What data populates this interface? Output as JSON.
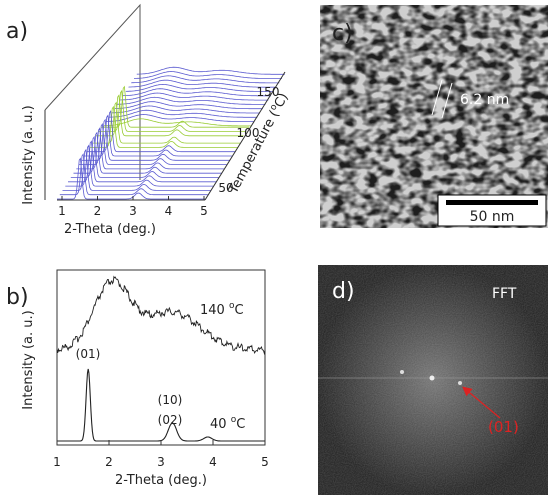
{
  "figure": {
    "a": {
      "label": "a)",
      "x_title": "2-Theta (deg.)",
      "y_title": "Intensity (a. u.)",
      "z_title": "Temperature (",
      "z_title_sup": "o",
      "z_title_end": "C)",
      "x_ticks": [
        "1",
        "2",
        "3",
        "4",
        "5"
      ],
      "z_ticks": [
        "50",
        "100",
        "150"
      ]
    },
    "b": {
      "label": "b)",
      "x_title": "2-Theta (deg.)",
      "y_title": "Intensity (a. u.)",
      "x_ticks": [
        "1",
        "2",
        "3",
        "4",
        "5"
      ],
      "hot": {
        "num": "140 ",
        "sup": "o",
        "unit": "C"
      },
      "cold": {
        "num": "40 ",
        "sup": "o",
        "unit": "C"
      },
      "peaks": [
        "(01)",
        "(10)",
        "(02)"
      ]
    },
    "c": {
      "label": "c)",
      "spacing": "6.2 nm",
      "scale": "50 nm"
    },
    "d": {
      "label": "d)",
      "tag": "FFT",
      "spot": "(01)"
    }
  }
}
